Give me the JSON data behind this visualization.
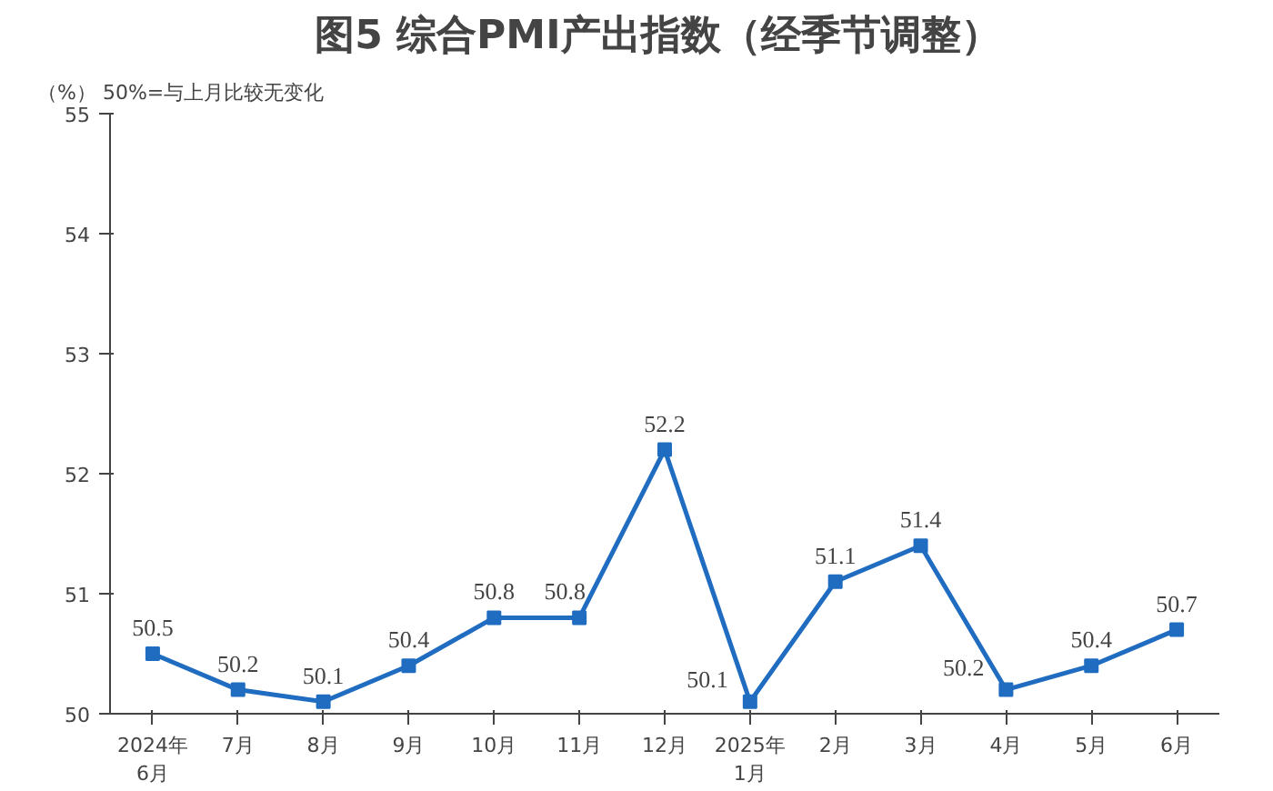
{
  "chart_data": {
    "type": "line",
    "title": "图5  综合PMI产出指数（经季节调整）",
    "ylabel": "（%）",
    "annotations": [
      "50%=与上月比较无变化"
    ],
    "categories": [
      "2024年\n6月",
      "7月",
      "8月",
      "9月",
      "10月",
      "11月",
      "12月",
      "2025年\n1月",
      "2月",
      "3月",
      "4月",
      "5月",
      "6月"
    ],
    "series": [
      {
        "color": "#1f6cc0",
        "values": [
          50.5,
          50.2,
          50.1,
          50.4,
          50.8,
          50.8,
          52.2,
          50.1,
          51.1,
          51.4,
          50.2,
          50.4,
          50.7
        ]
      }
    ],
    "ylim": [
      50,
      55
    ],
    "yticks": [
      50,
      51,
      52,
      53,
      54,
      55
    ],
    "data_labels": true,
    "marker": "square",
    "grid": false
  }
}
